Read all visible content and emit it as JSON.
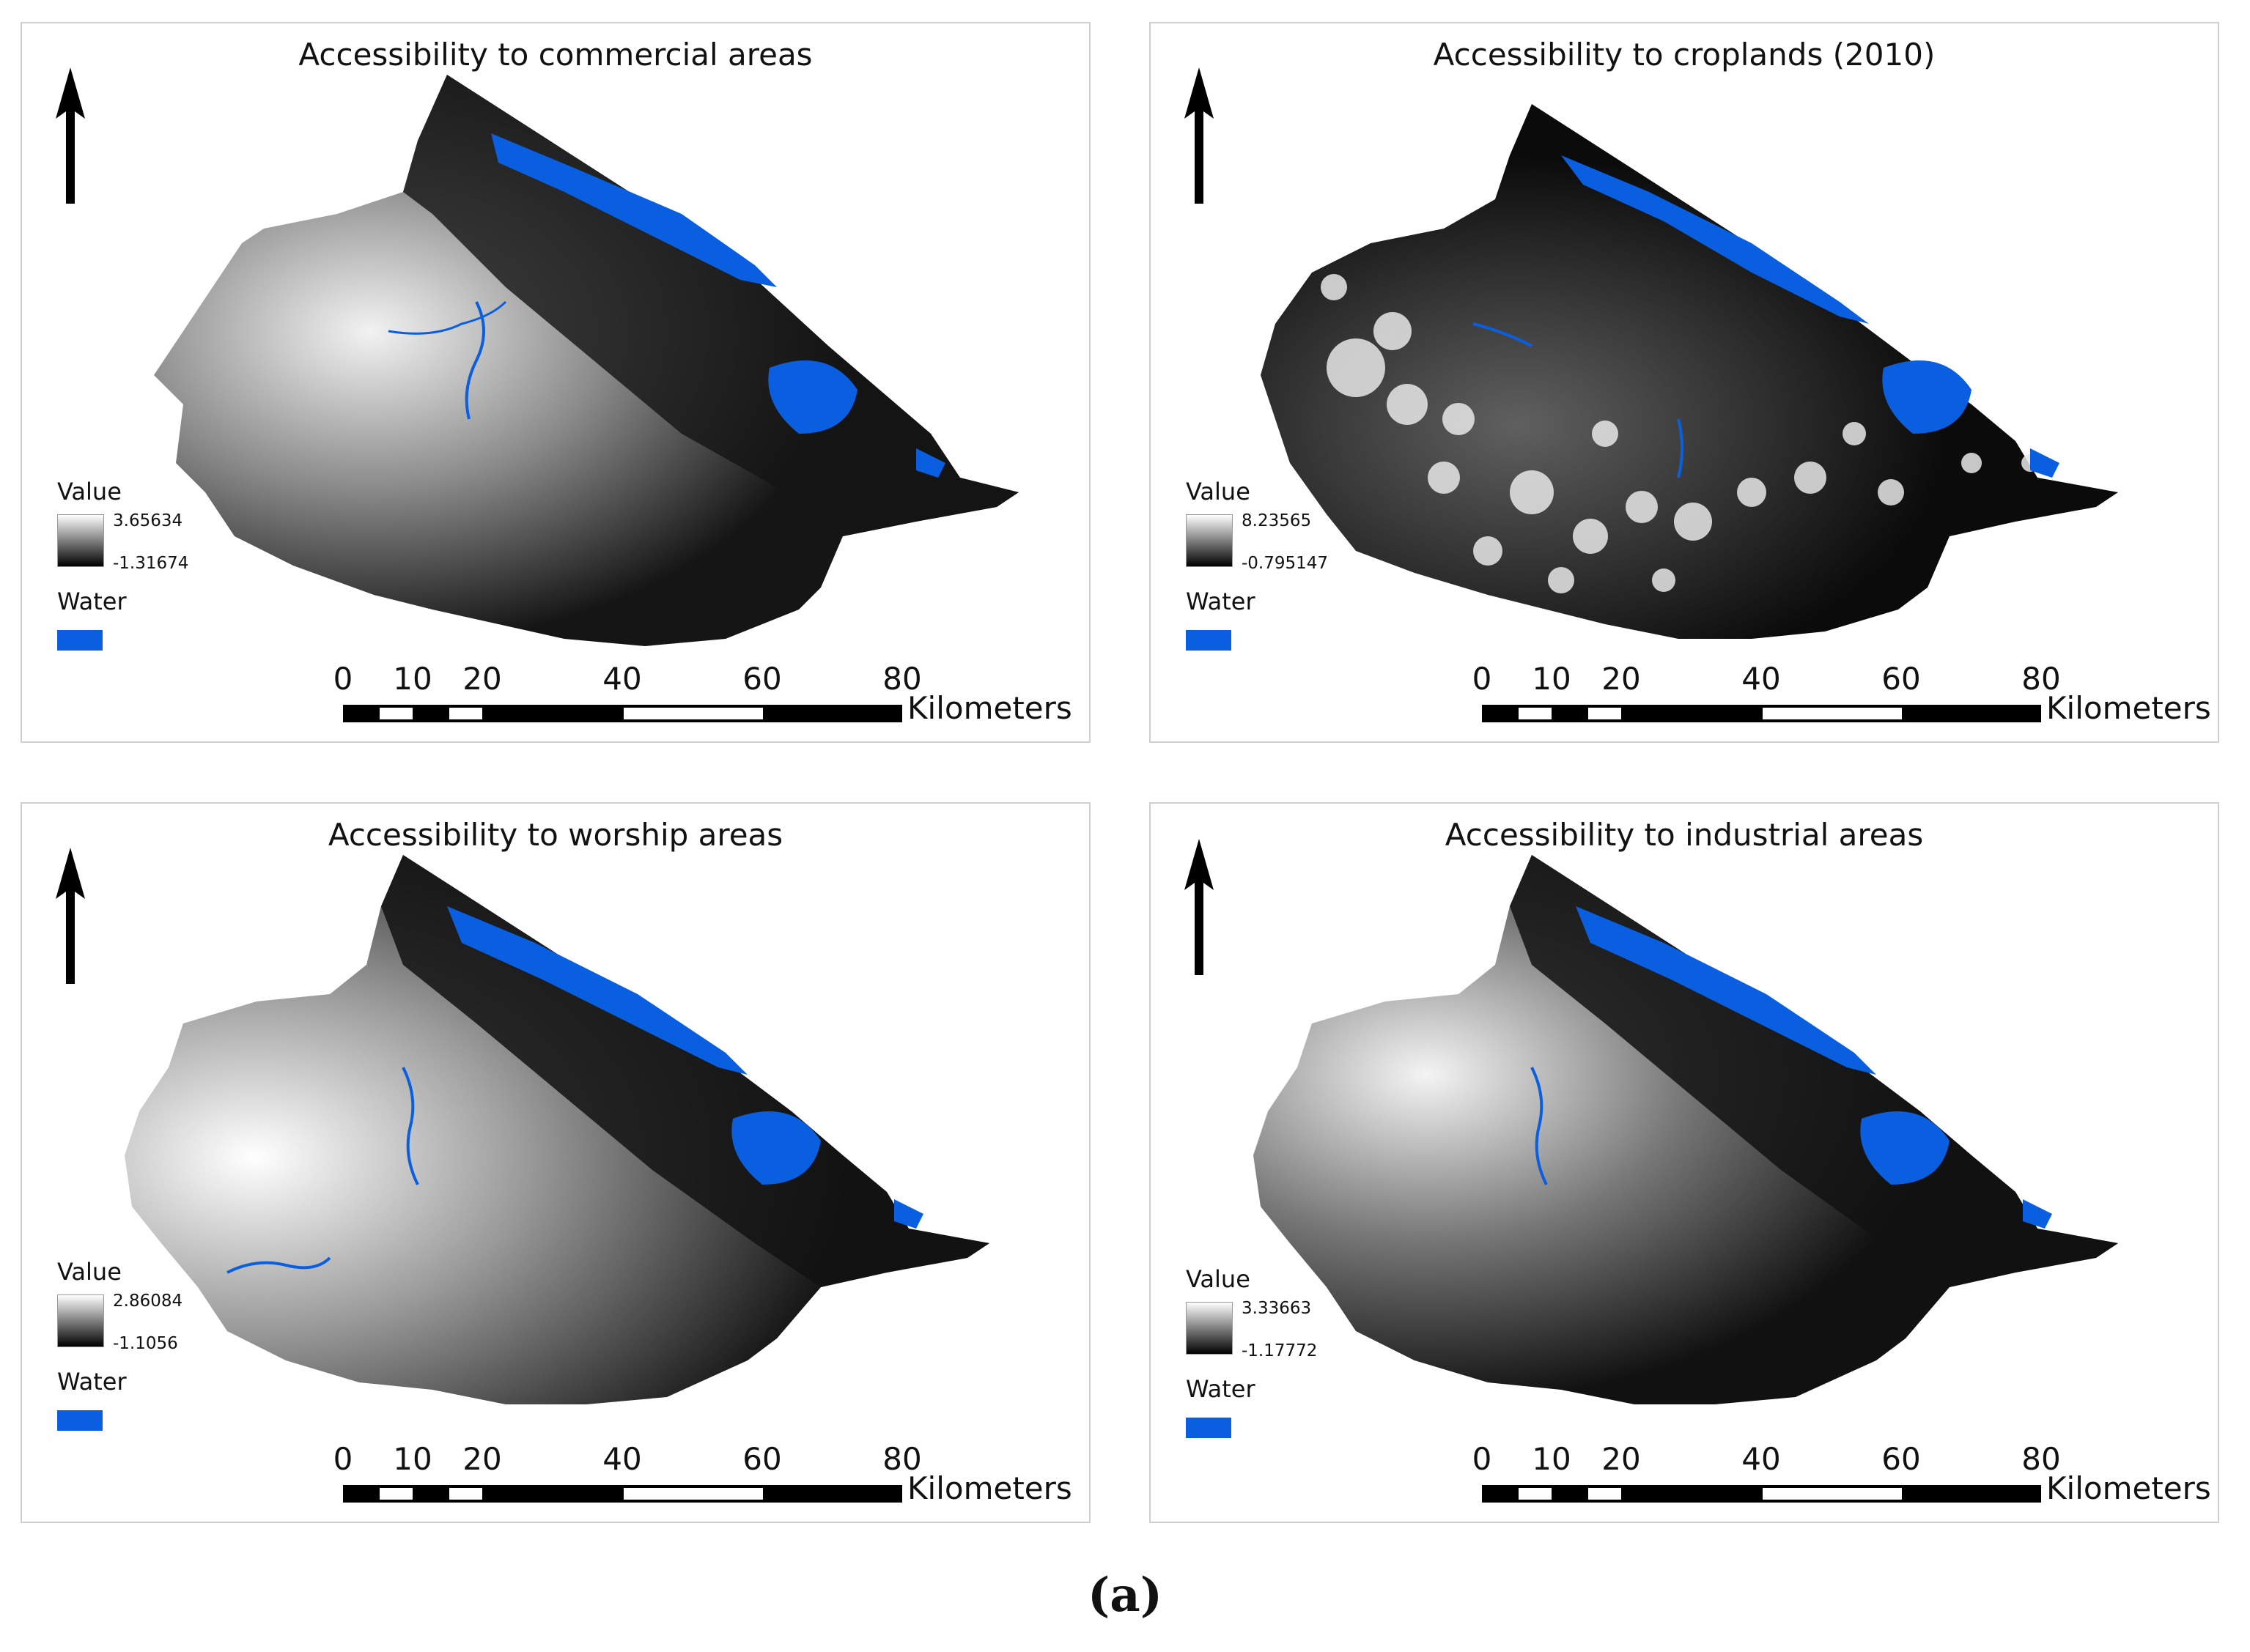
{
  "panels": [
    {
      "title": "Accessibility to commercial areas",
      "legend_title": "Value",
      "max": "3.65634",
      "min": "-1.31674",
      "water_label": "Water"
    },
    {
      "title": "Accessibility to croplands (2010)",
      "legend_title": "Value",
      "max": "8.23565",
      "min": "-0.795147",
      "water_label": "Water"
    },
    {
      "title": "Accessibility to worship areas",
      "legend_title": "Value",
      "max": "2.86084",
      "min": "-1.1056",
      "water_label": "Water"
    },
    {
      "title": "Accessibility to industrial areas",
      "legend_title": "Value",
      "max": "3.33663",
      "min": "-1.17772",
      "water_label": "Water"
    }
  ],
  "scalebar": {
    "ticks": [
      "0",
      "10",
      "20",
      "40",
      "60",
      "80"
    ],
    "unit": "Kilometers"
  },
  "figure_label": "(a)",
  "colors": {
    "water": "#0a5fe0",
    "ramp_high": "#ffffff",
    "ramp_low": "#000000"
  }
}
